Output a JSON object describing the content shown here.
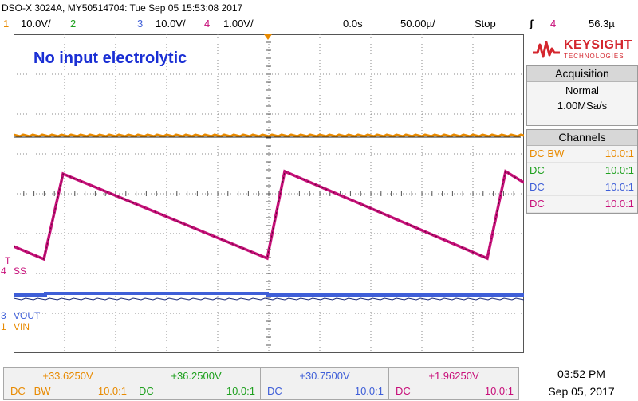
{
  "header": {
    "title": "DSO-X 3024A, MY50514704: Tue Sep 05 15:53:08 2017",
    "ch1_num": "1",
    "ch1_scale": "10.0V/",
    "ch2_num": "2",
    "ch3_num": "3",
    "ch3_scale": "10.0V/",
    "ch4_num": "4",
    "ch4_scale": "1.00V/",
    "time_offset": "0.0s",
    "time_scale": "50.00µ/",
    "run_state": "Stop",
    "trigger_icon": "ʃ",
    "trigger_channel": "4",
    "trigger_level": "56.3µ"
  },
  "annotation": "No input electrolytic",
  "logo": {
    "brand": "KEYSIGHT",
    "sub": "TECHNOLOGIES"
  },
  "acquisition": {
    "title": "Acquisition",
    "mode": "Normal",
    "rate": "1.00MSa/s"
  },
  "channels": {
    "title": "Channels",
    "rows": [
      {
        "coupling": "DC",
        "bw": "BW",
        "probe": "10.0:1",
        "color": "#e88a00"
      },
      {
        "coupling": "DC",
        "bw": "",
        "probe": "10.0:1",
        "color": "#1ea01e"
      },
      {
        "coupling": "DC",
        "bw": "",
        "probe": "10.0:1",
        "color": "#3f5fd8"
      },
      {
        "coupling": "DC",
        "bw": "",
        "probe": "10.0:1",
        "color": "#c8107a"
      }
    ]
  },
  "markers": {
    "trig_t": "T",
    "ch4_num": "4",
    "ch4_name": "SS",
    "ch3_num": "3",
    "ch3_name": "VOUT",
    "ch1_num": "1",
    "ch1_name": "VIN"
  },
  "bottom": [
    {
      "value": "+33.6250V",
      "coupling": "DC",
      "bw": "BW",
      "probe": "10.0:1",
      "color": "#e88a00"
    },
    {
      "value": "+36.2500V",
      "coupling": "DC",
      "bw": "",
      "probe": "10.0:1",
      "color": "#1ea01e"
    },
    {
      "value": "+30.7500V",
      "coupling": "DC",
      "bw": "",
      "probe": "10.0:1",
      "color": "#3f5fd8"
    },
    {
      "value": "+1.96250V",
      "coupling": "DC",
      "bw": "",
      "probe": "10.0:1",
      "color": "#c8107a"
    }
  ],
  "clock": {
    "time": "03:52 PM",
    "date": "Sep 05, 2017"
  },
  "colors": {
    "ch1": "#e88a00",
    "ch2": "#1ea01e",
    "ch3": "#3f5fd8",
    "ch4": "#c8107a",
    "annotation": "#1a2fd4",
    "logo": "#d4262e"
  }
}
